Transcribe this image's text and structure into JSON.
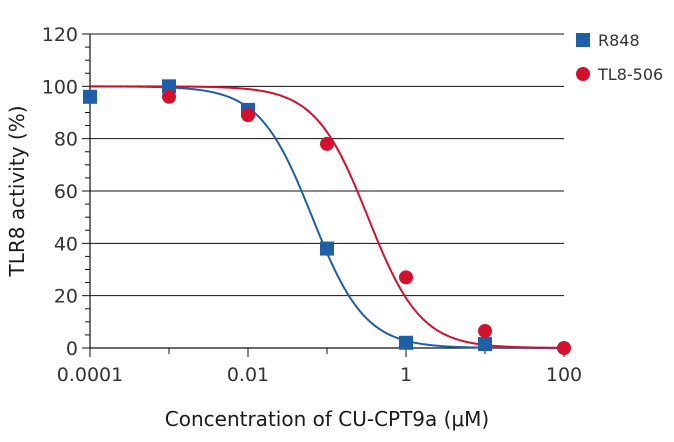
{
  "chart_data": {
    "type": "scatter",
    "xlabel": "Concentration of CU-CPT9a (μM)",
    "ylabel": "TLR8 activity (%)",
    "xscale": "log",
    "xlim": [
      0.0001,
      100
    ],
    "ylim": [
      0,
      120
    ],
    "xticks": [
      0.0001,
      0.01,
      1,
      100
    ],
    "xtick_labels": [
      "0.0001",
      "0.01",
      "1",
      "100"
    ],
    "yticks": [
      0,
      20,
      40,
      60,
      80,
      100,
      120
    ],
    "ytick_labels": [
      "0",
      "20",
      "40",
      "60",
      "80",
      "100",
      "120"
    ],
    "grid": "horizontal",
    "legend_position": "top-right",
    "series": [
      {
        "name": "R848",
        "marker": "square",
        "color": "#1f5fa8",
        "x": [
          0.0001,
          0.001,
          0.01,
          0.1,
          1,
          10
        ],
        "y": [
          96,
          100,
          91,
          38,
          2,
          1.5
        ],
        "fit": {
          "top": 100,
          "bottom": 0,
          "ic50": 0.065,
          "hill": 1.3
        }
      },
      {
        "name": "TL8-506",
        "marker": "circle",
        "color": "#d3112e",
        "x": [
          0.001,
          0.01,
          0.1,
          1,
          10,
          100
        ],
        "y": [
          96,
          89,
          78,
          27,
          6.5,
          0
        ],
        "fit": {
          "top": 100,
          "bottom": 0,
          "ic50": 0.33,
          "hill": 1.3
        }
      }
    ]
  }
}
